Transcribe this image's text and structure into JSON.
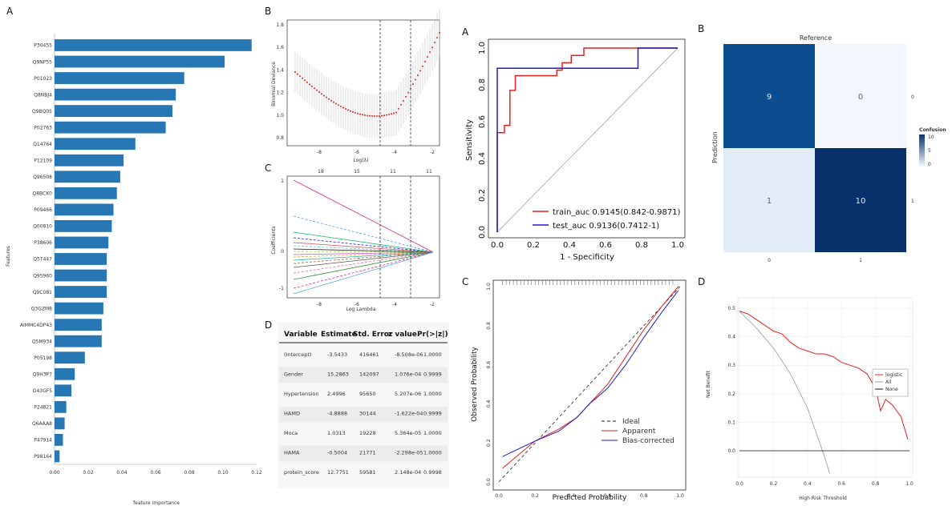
{
  "panels": {
    "left": {
      "letters": [
        "A",
        "B",
        "C",
        "D"
      ]
    },
    "right": {
      "letters": [
        "A",
        "B",
        "C",
        "D"
      ]
    }
  },
  "importance": {
    "type": "bar",
    "xlabel": "feature importance",
    "ylabel": "Features",
    "xticks": [
      "0.00",
      "0.02",
      "0.04",
      "0.06",
      "0.08",
      "0.10",
      "0.12"
    ],
    "xlim": [
      0,
      0.12
    ],
    "color": "#2777b4",
    "categories": [
      "P30455",
      "Q9NP55",
      "P01023",
      "Q8NBJ4",
      "Q9BQ05",
      "P02763",
      "Q14764",
      "P12109",
      "Q96508",
      "Q8BCK0",
      "P09466",
      "Q00810",
      "P38606",
      "Q5T447",
      "Q95960",
      "Q9C081",
      "Q3GZM8",
      "AIMMC4DP43",
      "Q5M934",
      "P05198",
      "Q9H3P7",
      "O43GF5",
      "P24821",
      "Q6AAA8",
      "P47914",
      "P98164"
    ],
    "values": [
      0.117,
      0.101,
      0.077,
      0.072,
      0.07,
      0.066,
      0.048,
      0.041,
      0.039,
      0.037,
      0.035,
      0.034,
      0.032,
      0.031,
      0.031,
      0.031,
      0.029,
      0.028,
      0.028,
      0.018,
      0.012,
      0.01,
      0.007,
      0.006,
      0.005,
      0.003
    ]
  },
  "lasso_cv": {
    "xlabel": "Log(λ)",
    "ylabel": "Binomial Deviance",
    "xticks": [
      "-8",
      "-6",
      "-4",
      "-2"
    ],
    "yticks": [
      "0.8",
      "1.0",
      "1.2",
      "1.4",
      "1.6",
      "1.8"
    ]
  },
  "lasso_path": {
    "xlabel": "Log Lambda",
    "ylabel": "Coefficients",
    "xticks": [
      "-8",
      "-6",
      "-4",
      "-2"
    ],
    "yticks": [
      "-1",
      "0",
      "1"
    ],
    "top_ticks": [
      "18",
      "15",
      "11",
      "11"
    ]
  },
  "coef_table": {
    "headers": [
      "Variable",
      "Estimate",
      "Std. Error",
      "z value",
      "Pr(>|z|)"
    ],
    "rows": [
      [
        "(Intercept)",
        "-3.5433",
        "416461",
        "-8.508e-06",
        "1.0000"
      ],
      [
        "Gender",
        "15.2863",
        "142097",
        "1.076e-04",
        "0.9999"
      ],
      [
        "Hypertension",
        "2.4996",
        "95650",
        "5.207e-06",
        "1.0000"
      ],
      [
        "HAMD",
        "-4.8888",
        "30144",
        "-1.622e-04",
        "0.9999"
      ],
      [
        "Moca",
        "1.0313",
        "19228",
        "5.364e-05",
        "1.0000"
      ],
      [
        "HAMA",
        "-0.5004",
        "21771",
        "-2.298e-05",
        "1.0000"
      ],
      [
        "protein_score",
        "12.7751",
        "59581",
        "2.148e-04",
        "0.9998"
      ]
    ]
  },
  "roc": {
    "type": "line",
    "xlabel": "1 - Specificity",
    "ylabel": "Sensitivity",
    "xticks": [
      "0.0",
      "0.2",
      "0.4",
      "0.6",
      "0.8",
      "1.0"
    ],
    "yticks": [
      "0.0",
      "0.2",
      "0.4",
      "0.6",
      "0.8",
      "1.0"
    ],
    "legend": [
      "train_auc  0.9145(0.842-0.9871)",
      "test_auc  0.9136(0.7412-1)"
    ],
    "train_color": "#e3241c",
    "test_color": "#1a1adb",
    "train": [
      [
        0,
        0
      ],
      [
        0,
        0.54
      ],
      [
        0.04,
        0.54
      ],
      [
        0.04,
        0.58
      ],
      [
        0.07,
        0.58
      ],
      [
        0.07,
        0.77
      ],
      [
        0.1,
        0.77
      ],
      [
        0.1,
        0.85
      ],
      [
        0.33,
        0.85
      ],
      [
        0.33,
        0.88
      ],
      [
        0.36,
        0.88
      ],
      [
        0.36,
        0.92
      ],
      [
        0.41,
        0.92
      ],
      [
        0.41,
        0.96
      ],
      [
        0.48,
        0.96
      ],
      [
        0.48,
        1
      ],
      [
        1,
        1
      ]
    ],
    "test": [
      [
        0,
        0
      ],
      [
        0,
        0.89
      ],
      [
        0.78,
        0.89
      ],
      [
        0.78,
        1
      ],
      [
        1,
        1
      ]
    ]
  },
  "confusion": {
    "type": "heatmap",
    "top_label": "Reference",
    "ylabel": "Prediction",
    "legend_title": "Confusion",
    "legend_ticks": [
      "10",
      "5",
      "0"
    ],
    "col_labels": [
      "0",
      "1"
    ],
    "row_labels": [
      "0",
      "1"
    ],
    "cells": [
      [
        9,
        0
      ],
      [
        1,
        10
      ]
    ],
    "colors": [
      [
        "#0c4d8f",
        "#f3f7fd"
      ],
      [
        "#e3edf8",
        "#08306b"
      ]
    ]
  },
  "calibration": {
    "type": "line",
    "xlabel": "Predicted Probability",
    "ylabel": "Observed Probability",
    "xticks": [
      "0.0",
      "0.2",
      "0.4",
      "0.6",
      "0.8",
      "1.0"
    ],
    "yticks": [
      "0.0",
      "0.2",
      "0.4",
      "0.6",
      "0.8",
      "1.0"
    ],
    "legend": [
      "Ideal",
      "Apparent",
      "Bias-corrected"
    ],
    "apparent": [
      [
        0.02,
        0.07
      ],
      [
        0.2,
        0.21
      ],
      [
        0.33,
        0.27
      ],
      [
        0.43,
        0.33
      ],
      [
        0.5,
        0.4
      ],
      [
        0.6,
        0.5
      ],
      [
        0.7,
        0.64
      ],
      [
        0.8,
        0.78
      ],
      [
        0.9,
        0.9
      ],
      [
        0.99,
        1.0
      ]
    ],
    "bias_corrected": [
      [
        0.02,
        0.13
      ],
      [
        0.2,
        0.21
      ],
      [
        0.33,
        0.26
      ],
      [
        0.43,
        0.33
      ],
      [
        0.5,
        0.4
      ],
      [
        0.6,
        0.48
      ],
      [
        0.7,
        0.6
      ],
      [
        0.8,
        0.74
      ],
      [
        0.9,
        0.87
      ],
      [
        0.99,
        0.98
      ]
    ]
  },
  "dca": {
    "type": "line",
    "xlabel": "High Risk Threshold",
    "ylabel": "Net Benefit",
    "xticks": [
      "0.0",
      "0.2",
      "0.4",
      "0.6",
      "0.8",
      "1.0"
    ],
    "yticks": [
      "0.0",
      "0.1",
      "0.2",
      "0.3",
      "0.4",
      "0.5"
    ],
    "legend": [
      "logistic",
      "All",
      "None"
    ],
    "logistic": [
      [
        0,
        0.49
      ],
      [
        0.05,
        0.48
      ],
      [
        0.1,
        0.46
      ],
      [
        0.15,
        0.44
      ],
      [
        0.2,
        0.42
      ],
      [
        0.25,
        0.41
      ],
      [
        0.3,
        0.38
      ],
      [
        0.35,
        0.36
      ],
      [
        0.4,
        0.35
      ],
      [
        0.45,
        0.34
      ],
      [
        0.5,
        0.34
      ],
      [
        0.55,
        0.33
      ],
      [
        0.6,
        0.31
      ],
      [
        0.65,
        0.3
      ],
      [
        0.7,
        0.29
      ],
      [
        0.75,
        0.27
      ],
      [
        0.8,
        0.22
      ],
      [
        0.83,
        0.14
      ],
      [
        0.86,
        0.18
      ],
      [
        0.9,
        0.16
      ],
      [
        0.95,
        0.12
      ],
      [
        0.99,
        0.04
      ]
    ],
    "all": [
      [
        0,
        0.49
      ],
      [
        0.1,
        0.43
      ],
      [
        0.2,
        0.36
      ],
      [
        0.3,
        0.27
      ],
      [
        0.4,
        0.15
      ],
      [
        0.5,
        -0.02
      ],
      [
        0.53,
        -0.08
      ]
    ],
    "none": [
      [
        0,
        0
      ],
      [
        1,
        0
      ]
    ]
  }
}
